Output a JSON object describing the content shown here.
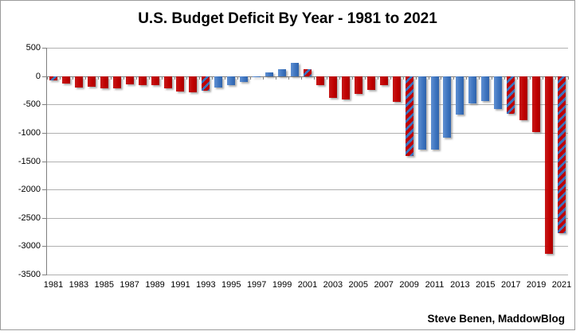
{
  "title": "U.S. Budget Deficit By Year - 1981 to 2021",
  "credit": "Steve Benen, MaddowBlog",
  "colors": {
    "red_bar": "#c00000",
    "blue_bar": "#3c73be",
    "gridline": "#b0b0b0",
    "axis_line": "#7f7f7f",
    "background": "#ffffff",
    "hatch_pattern": "diagonal red/blue stripes"
  },
  "chart_data": {
    "type": "bar",
    "title": "U.S. Budget Deficit By Year - 1981 to 2021",
    "xlabel": "",
    "ylabel": "",
    "ylim": [
      -3500,
      500
    ],
    "grid": true,
    "legend": false,
    "y_tick_labels": [
      "500",
      "0",
      "-500",
      "-1000",
      "-1500",
      "-2000",
      "-2500",
      "-3000",
      "-3500"
    ],
    "y_ticks": [
      500,
      0,
      -500,
      -1000,
      -1500,
      -2000,
      -2500,
      -3000,
      -3500
    ],
    "x_tick_labels": [
      "1981",
      "1983",
      "1985",
      "1987",
      "1989",
      "1991",
      "1993",
      "1995",
      "1997",
      "1999",
      "2001",
      "2003",
      "2005",
      "2007",
      "2009",
      "2011",
      "2013",
      "2015",
      "2017",
      "2019",
      "2021"
    ],
    "bars": [
      {
        "year": 1981,
        "value": -79,
        "fill": "hatch"
      },
      {
        "year": 1982,
        "value": -128,
        "fill": "red"
      },
      {
        "year": 1983,
        "value": -208,
        "fill": "red"
      },
      {
        "year": 1984,
        "value": -185,
        "fill": "red"
      },
      {
        "year": 1985,
        "value": -212,
        "fill": "red"
      },
      {
        "year": 1986,
        "value": -221,
        "fill": "red"
      },
      {
        "year": 1987,
        "value": -150,
        "fill": "red"
      },
      {
        "year": 1988,
        "value": -155,
        "fill": "red"
      },
      {
        "year": 1989,
        "value": -153,
        "fill": "red"
      },
      {
        "year": 1990,
        "value": -221,
        "fill": "red"
      },
      {
        "year": 1991,
        "value": -269,
        "fill": "red"
      },
      {
        "year": 1992,
        "value": -290,
        "fill": "red"
      },
      {
        "year": 1993,
        "value": -255,
        "fill": "hatch"
      },
      {
        "year": 1994,
        "value": -203,
        "fill": "blue"
      },
      {
        "year": 1995,
        "value": -164,
        "fill": "blue"
      },
      {
        "year": 1996,
        "value": -107,
        "fill": "blue"
      },
      {
        "year": 1997,
        "value": -22,
        "fill": "blue"
      },
      {
        "year": 1998,
        "value": 69,
        "fill": "blue"
      },
      {
        "year": 1999,
        "value": 126,
        "fill": "blue"
      },
      {
        "year": 2000,
        "value": 236,
        "fill": "blue"
      },
      {
        "year": 2001,
        "value": 128,
        "fill": "hatch"
      },
      {
        "year": 2002,
        "value": -158,
        "fill": "red"
      },
      {
        "year": 2003,
        "value": -378,
        "fill": "red"
      },
      {
        "year": 2004,
        "value": -413,
        "fill": "red"
      },
      {
        "year": 2005,
        "value": -318,
        "fill": "red"
      },
      {
        "year": 2006,
        "value": -248,
        "fill": "red"
      },
      {
        "year": 2007,
        "value": -161,
        "fill": "red"
      },
      {
        "year": 2008,
        "value": -459,
        "fill": "red"
      },
      {
        "year": 2009,
        "value": -1413,
        "fill": "hatch"
      },
      {
        "year": 2010,
        "value": -1294,
        "fill": "blue"
      },
      {
        "year": 2011,
        "value": -1300,
        "fill": "blue"
      },
      {
        "year": 2012,
        "value": -1087,
        "fill": "blue"
      },
      {
        "year": 2013,
        "value": -680,
        "fill": "blue"
      },
      {
        "year": 2014,
        "value": -485,
        "fill": "blue"
      },
      {
        "year": 2015,
        "value": -442,
        "fill": "blue"
      },
      {
        "year": 2016,
        "value": -585,
        "fill": "blue"
      },
      {
        "year": 2017,
        "value": -665,
        "fill": "hatch"
      },
      {
        "year": 2018,
        "value": -779,
        "fill": "red"
      },
      {
        "year": 2019,
        "value": -984,
        "fill": "red"
      },
      {
        "year": 2020,
        "value": -3132,
        "fill": "red"
      },
      {
        "year": 2021,
        "value": -2775,
        "fill": "hatch"
      }
    ]
  }
}
